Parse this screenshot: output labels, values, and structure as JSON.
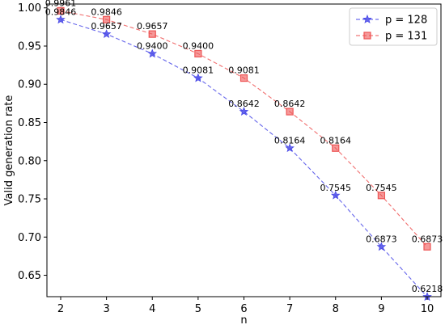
{
  "chart_data": {
    "type": "line",
    "xlabel": "n",
    "ylabel": "Valid generation rate",
    "xlim": [
      1.7,
      10.3
    ],
    "ylim": [
      0.622,
      1.005
    ],
    "x_ticks": [
      2,
      3,
      4,
      5,
      6,
      7,
      8,
      9,
      10
    ],
    "y_ticks": [
      0.65,
      0.7,
      0.75,
      0.8,
      0.85,
      0.9,
      0.95,
      1.0
    ],
    "y_tick_labels": [
      "0.65",
      "0.70",
      "0.75",
      "0.80",
      "0.85",
      "0.90",
      "0.95",
      "1.00"
    ],
    "grid": false,
    "legend_position": "top-right",
    "x": [
      2,
      3,
      4,
      5,
      6,
      7,
      8,
      9,
      10
    ],
    "series": [
      {
        "name": "p = 128",
        "color": "#4a4ae8",
        "marker": "star",
        "values": [
          0.9846,
          0.9657,
          0.94,
          0.9081,
          0.8642,
          0.8164,
          0.7545,
          0.6873,
          0.6218
        ],
        "labels": [
          "0.9846",
          "0.9657",
          "0.9400",
          "0.9081",
          "0.8642",
          "0.8164",
          "0.7545",
          "0.6873",
          "0.6218"
        ]
      },
      {
        "name": "p = 131",
        "color": "#ee5555",
        "marker": "square",
        "values": [
          0.9961,
          0.9846,
          0.9657,
          0.94,
          0.9081,
          0.8642,
          0.8164,
          0.7545,
          0.6873
        ],
        "labels": [
          "0.9961",
          "0.9846",
          "0.9657",
          "0.9400",
          "0.9081",
          "0.8642",
          "0.8164",
          "0.7545",
          "0.6873"
        ]
      }
    ]
  }
}
